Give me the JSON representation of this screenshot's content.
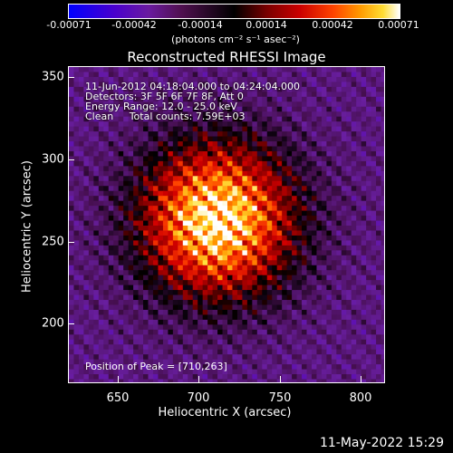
{
  "colorbar": {
    "ticks": [
      "-0.00071",
      "-0.00042",
      "-0.00014",
      "0.00014",
      "0.00042",
      "0.00071"
    ],
    "unit": "(photons cm⁻² s⁻¹ asec⁻²)"
  },
  "title": "Reconstructed RHESSI Image",
  "info": {
    "time_range": "11-Jun-2012 04:18:04.000 to 04:24:04.000",
    "detectors": "Detectors: 3F 5F 6F 7F 8F, Att 0",
    "energy": "Energy Range: 12.0 - 25.0 keV",
    "clean": "Clean     Total counts: 7.59E+03"
  },
  "peak_label": "Position of Peak = [710,263]",
  "chart_data": {
    "type": "heatmap",
    "title": "Reconstructed RHESSI Image",
    "xlabel": "Heliocentric X (arcsec)",
    "ylabel": "Heliocentric Y (arcsec)",
    "xlim": [
      620,
      812
    ],
    "ylim": [
      163,
      356
    ],
    "x_ticks": [
      650,
      700,
      750,
      800
    ],
    "y_ticks": [
      200,
      250,
      300,
      350
    ],
    "zlim": [
      -0.00071,
      0.00071
    ],
    "peak": [
      710,
      263
    ],
    "source_sigma_arcsec": 32
  },
  "xlabel": "Heliocentric X (arcsec)",
  "ylabel": "Heliocentric Y (arcsec)",
  "x_ticks": [
    "650",
    "700",
    "750",
    "800"
  ],
  "y_ticks": [
    "200",
    "250",
    "300",
    "350"
  ],
  "timestamp": "11-May-2022 15:29"
}
